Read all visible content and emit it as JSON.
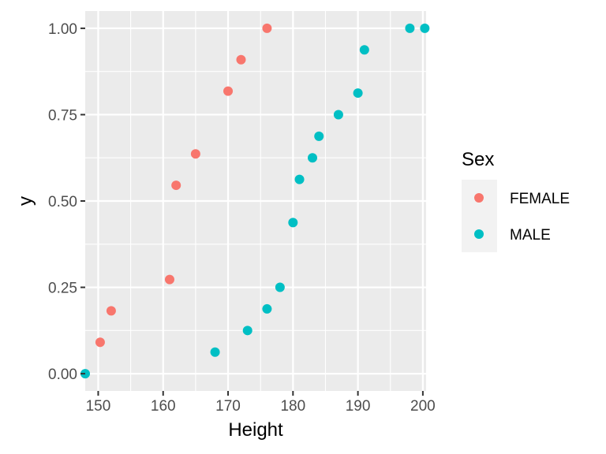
{
  "chart_data": {
    "type": "scatter",
    "xlabel": "Height",
    "ylabel": "y",
    "xlim": [
      148,
      200.5
    ],
    "ylim": [
      -0.05,
      1.05
    ],
    "x_ticks": [
      150,
      160,
      170,
      180,
      190,
      200
    ],
    "x_tick_labels": [
      "150",
      "160",
      "170",
      "180",
      "190",
      "200"
    ],
    "y_ticks": [
      0,
      0.25,
      0.5,
      0.75,
      1.0
    ],
    "y_tick_labels": [
      "0.00",
      "0.25",
      "0.50",
      "0.75",
      "1.00"
    ],
    "grid": true,
    "legend": {
      "title": "Sex",
      "position": "right"
    },
    "series": [
      {
        "name": "FEMALE",
        "color": "#F8766D",
        "points": [
          {
            "x": 150.3,
            "y": 0.0909
          },
          {
            "x": 152,
            "y": 0.1818
          },
          {
            "x": 161,
            "y": 0.2727
          },
          {
            "x": 162,
            "y": 0.5455
          },
          {
            "x": 165,
            "y": 0.6364
          },
          {
            "x": 170,
            "y": 0.8182
          },
          {
            "x": 172,
            "y": 0.9091
          },
          {
            "x": 176,
            "y": 1.0
          }
        ]
      },
      {
        "name": "MALE",
        "color": "#00BFC4",
        "points": [
          {
            "x": 148,
            "y": 0.0
          },
          {
            "x": 168,
            "y": 0.0625
          },
          {
            "x": 173,
            "y": 0.125
          },
          {
            "x": 176,
            "y": 0.1875
          },
          {
            "x": 178,
            "y": 0.25
          },
          {
            "x": 180,
            "y": 0.4375
          },
          {
            "x": 181,
            "y": 0.5625
          },
          {
            "x": 183,
            "y": 0.625
          },
          {
            "x": 184,
            "y": 0.6875
          },
          {
            "x": 187,
            "y": 0.75
          },
          {
            "x": 190,
            "y": 0.8125
          },
          {
            "x": 191,
            "y": 0.9375
          },
          {
            "x": 198,
            "y": 1.0
          },
          {
            "x": 200.3,
            "y": 1.0
          }
        ]
      }
    ]
  }
}
